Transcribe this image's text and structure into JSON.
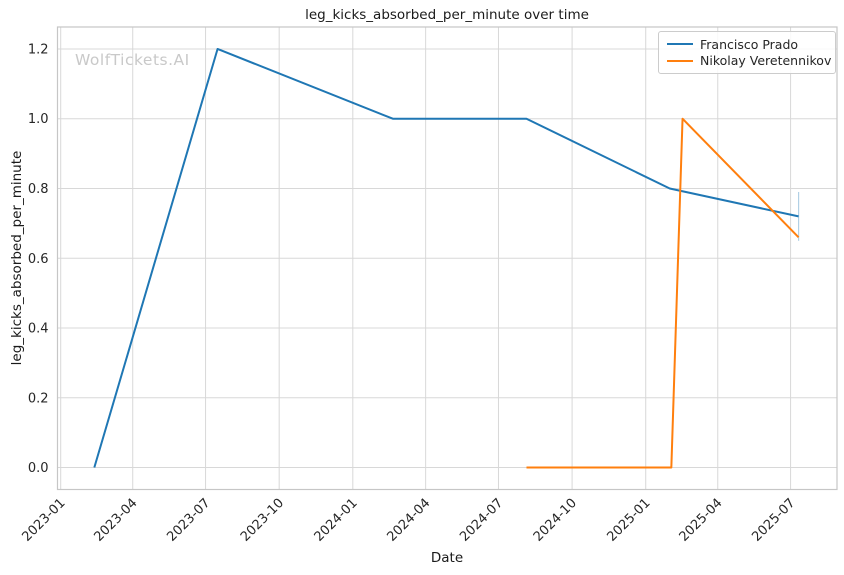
{
  "watermark": {
    "text": "WolfTickets.AI",
    "color": "#c9c9c9"
  },
  "styles": {
    "grid_color": "#d8d8d8",
    "spine_color": "#c6c6c6",
    "text_color": "#262626",
    "background": "#ffffff"
  },
  "chart_data": {
    "type": "line",
    "title": "leg_kicks_absorbed_per_minute over time",
    "xlabel": "Date",
    "ylabel": "leg_kicks_absorbed_per_minute",
    "grid": true,
    "legend_position": "upper right",
    "xlim": [
      "2022-12-28",
      "2025-08-28"
    ],
    "ylim": [
      -0.063,
      1.263
    ],
    "x_ticks": [
      {
        "date": "2023-01-01",
        "label": "2023-01"
      },
      {
        "date": "2023-04-01",
        "label": "2023-04"
      },
      {
        "date": "2023-07-01",
        "label": "2023-07"
      },
      {
        "date": "2023-10-01",
        "label": "2023-10"
      },
      {
        "date": "2024-01-01",
        "label": "2024-01"
      },
      {
        "date": "2024-04-01",
        "label": "2024-04"
      },
      {
        "date": "2024-07-01",
        "label": "2024-07"
      },
      {
        "date": "2024-10-01",
        "label": "2024-10"
      },
      {
        "date": "2025-01-01",
        "label": "2025-01"
      },
      {
        "date": "2025-04-01",
        "label": "2025-04"
      },
      {
        "date": "2025-07-01",
        "label": "2025-07"
      }
    ],
    "y_ticks": [
      {
        "value": 0.0,
        "label": "0.0"
      },
      {
        "value": 0.2,
        "label": "0.2"
      },
      {
        "value": 0.4,
        "label": "0.4"
      },
      {
        "value": 0.6,
        "label": "0.6"
      },
      {
        "value": 0.8,
        "label": "0.8"
      },
      {
        "value": 1.0,
        "label": "1.0"
      },
      {
        "value": 1.2,
        "label": "1.2"
      }
    ],
    "series": [
      {
        "name": "Francisco Prado",
        "color": "#1f77b4",
        "points": [
          {
            "date": "2023-02-12",
            "value": 0.0
          },
          {
            "date": "2023-07-16",
            "value": 1.2
          },
          {
            "date": "2024-02-20",
            "value": 1.0
          },
          {
            "date": "2024-08-05",
            "value": 1.0
          },
          {
            "date": "2025-01-31",
            "value": 0.8
          },
          {
            "date": "2025-07-11",
            "value": 0.72
          }
        ]
      },
      {
        "name": "Nikolay Veretennikov",
        "color": "#ff7f0e",
        "points": [
          {
            "date": "2024-08-05",
            "value": 0.0
          },
          {
            "date": "2025-02-02",
            "value": 0.0
          },
          {
            "date": "2025-02-16",
            "value": 1.0
          },
          {
            "date": "2025-07-11",
            "value": 0.66
          }
        ]
      }
    ],
    "end_marker": {
      "date": "2025-07-11",
      "value_top": 0.79,
      "value_bottom": 0.65,
      "color": "rgba(31,119,180,0.35)"
    }
  }
}
